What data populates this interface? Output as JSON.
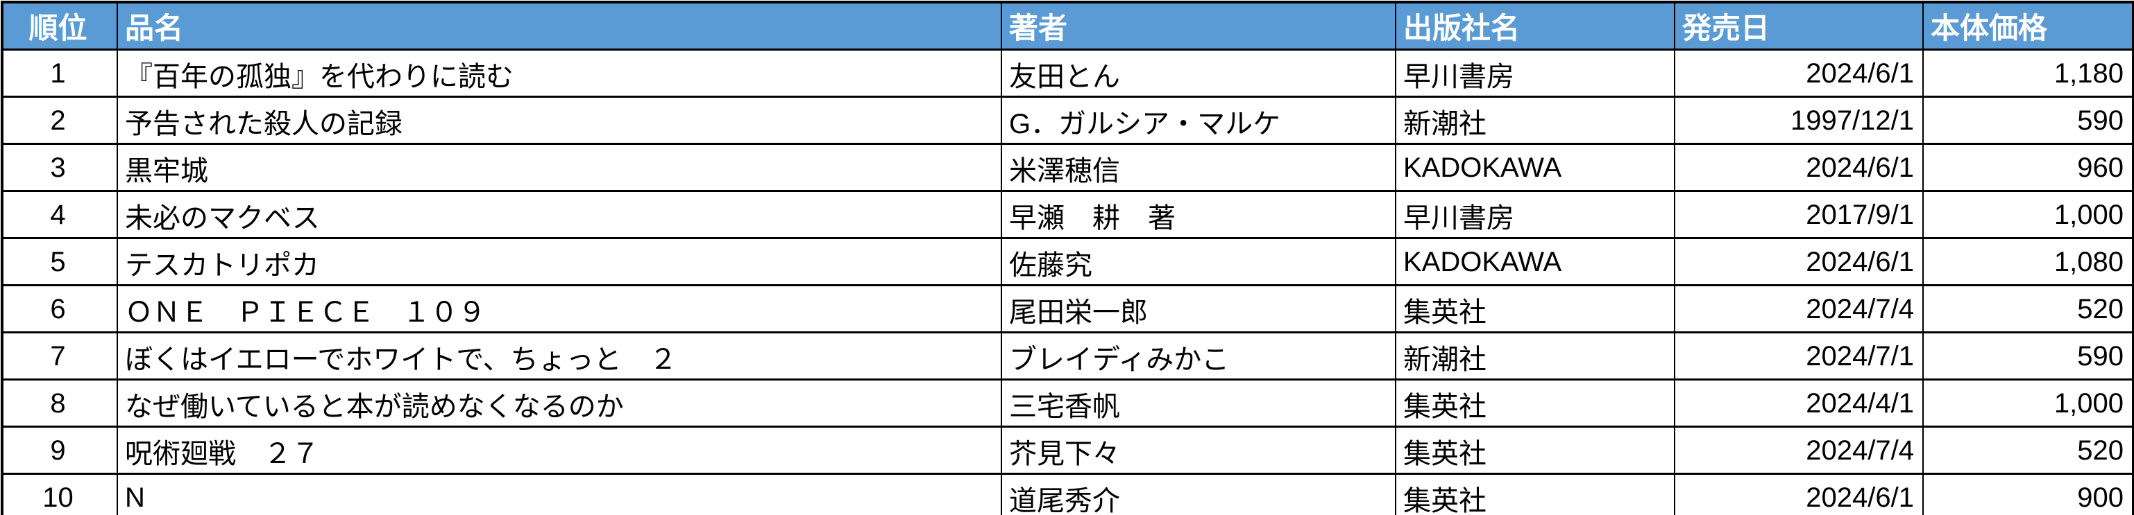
{
  "chart_data": {
    "type": "table",
    "columns": [
      {
        "key": "rank",
        "label": "順位"
      },
      {
        "key": "title",
        "label": "品名"
      },
      {
        "key": "author",
        "label": "著者"
      },
      {
        "key": "publisher",
        "label": "出版社名"
      },
      {
        "key": "date",
        "label": "発売日"
      },
      {
        "key": "price",
        "label": "本体価格"
      }
    ],
    "rows": [
      {
        "rank": "1",
        "title": "『百年の孤独』を代わりに読む",
        "author": "友田とん",
        "publisher": "早川書房",
        "date": "2024/6/1",
        "price": "1,180"
      },
      {
        "rank": "2",
        "title": "予告された殺人の記録",
        "author": "G．ガルシア・マルケ",
        "publisher": "新潮社",
        "date": "1997/12/1",
        "price": "590"
      },
      {
        "rank": "3",
        "title": "黒牢城",
        "author": "米澤穂信",
        "publisher": "KADOKAWA",
        "date": "2024/6/1",
        "price": "960"
      },
      {
        "rank": "4",
        "title": "未必のマクベス",
        "author": "早瀬　耕　著",
        "publisher": "早川書房",
        "date": "2017/9/1",
        "price": "1,000"
      },
      {
        "rank": "5",
        "title": "テスカトリポカ",
        "author": "佐藤究",
        "publisher": "KADOKAWA",
        "date": "2024/6/1",
        "price": "1,080"
      },
      {
        "rank": "6",
        "title": "ＯＮＥ　ＰＩＥＣＥ　１０９",
        "author": "尾田栄一郎",
        "publisher": "集英社",
        "date": "2024/7/4",
        "price": "520"
      },
      {
        "rank": "7",
        "title": "ぼくはイエローでホワイトで、ちょっと　２",
        "author": "ブレイディみかこ",
        "publisher": "新潮社",
        "date": "2024/7/1",
        "price": "590"
      },
      {
        "rank": "8",
        "title": "なぜ働いていると本が読めなくなるのか",
        "author": "三宅香帆",
        "publisher": "集英社",
        "date": "2024/4/1",
        "price": "1,000"
      },
      {
        "rank": "9",
        "title": "呪術廻戦　２７",
        "author": "芥見下々",
        "publisher": "集英社",
        "date": "2024/7/4",
        "price": "520"
      },
      {
        "rank": "10",
        "title": "N",
        "author": "道尾秀介",
        "publisher": "集英社",
        "date": "2024/6/1",
        "price": "900"
      }
    ],
    "title": "",
    "legend": "none",
    "grid": "all-borders"
  },
  "style": {
    "header_bg": "#5B9BD5",
    "header_text_color": "#FFFFFF",
    "border_color": "#000000",
    "body_bg": "#FFFFFF"
  }
}
